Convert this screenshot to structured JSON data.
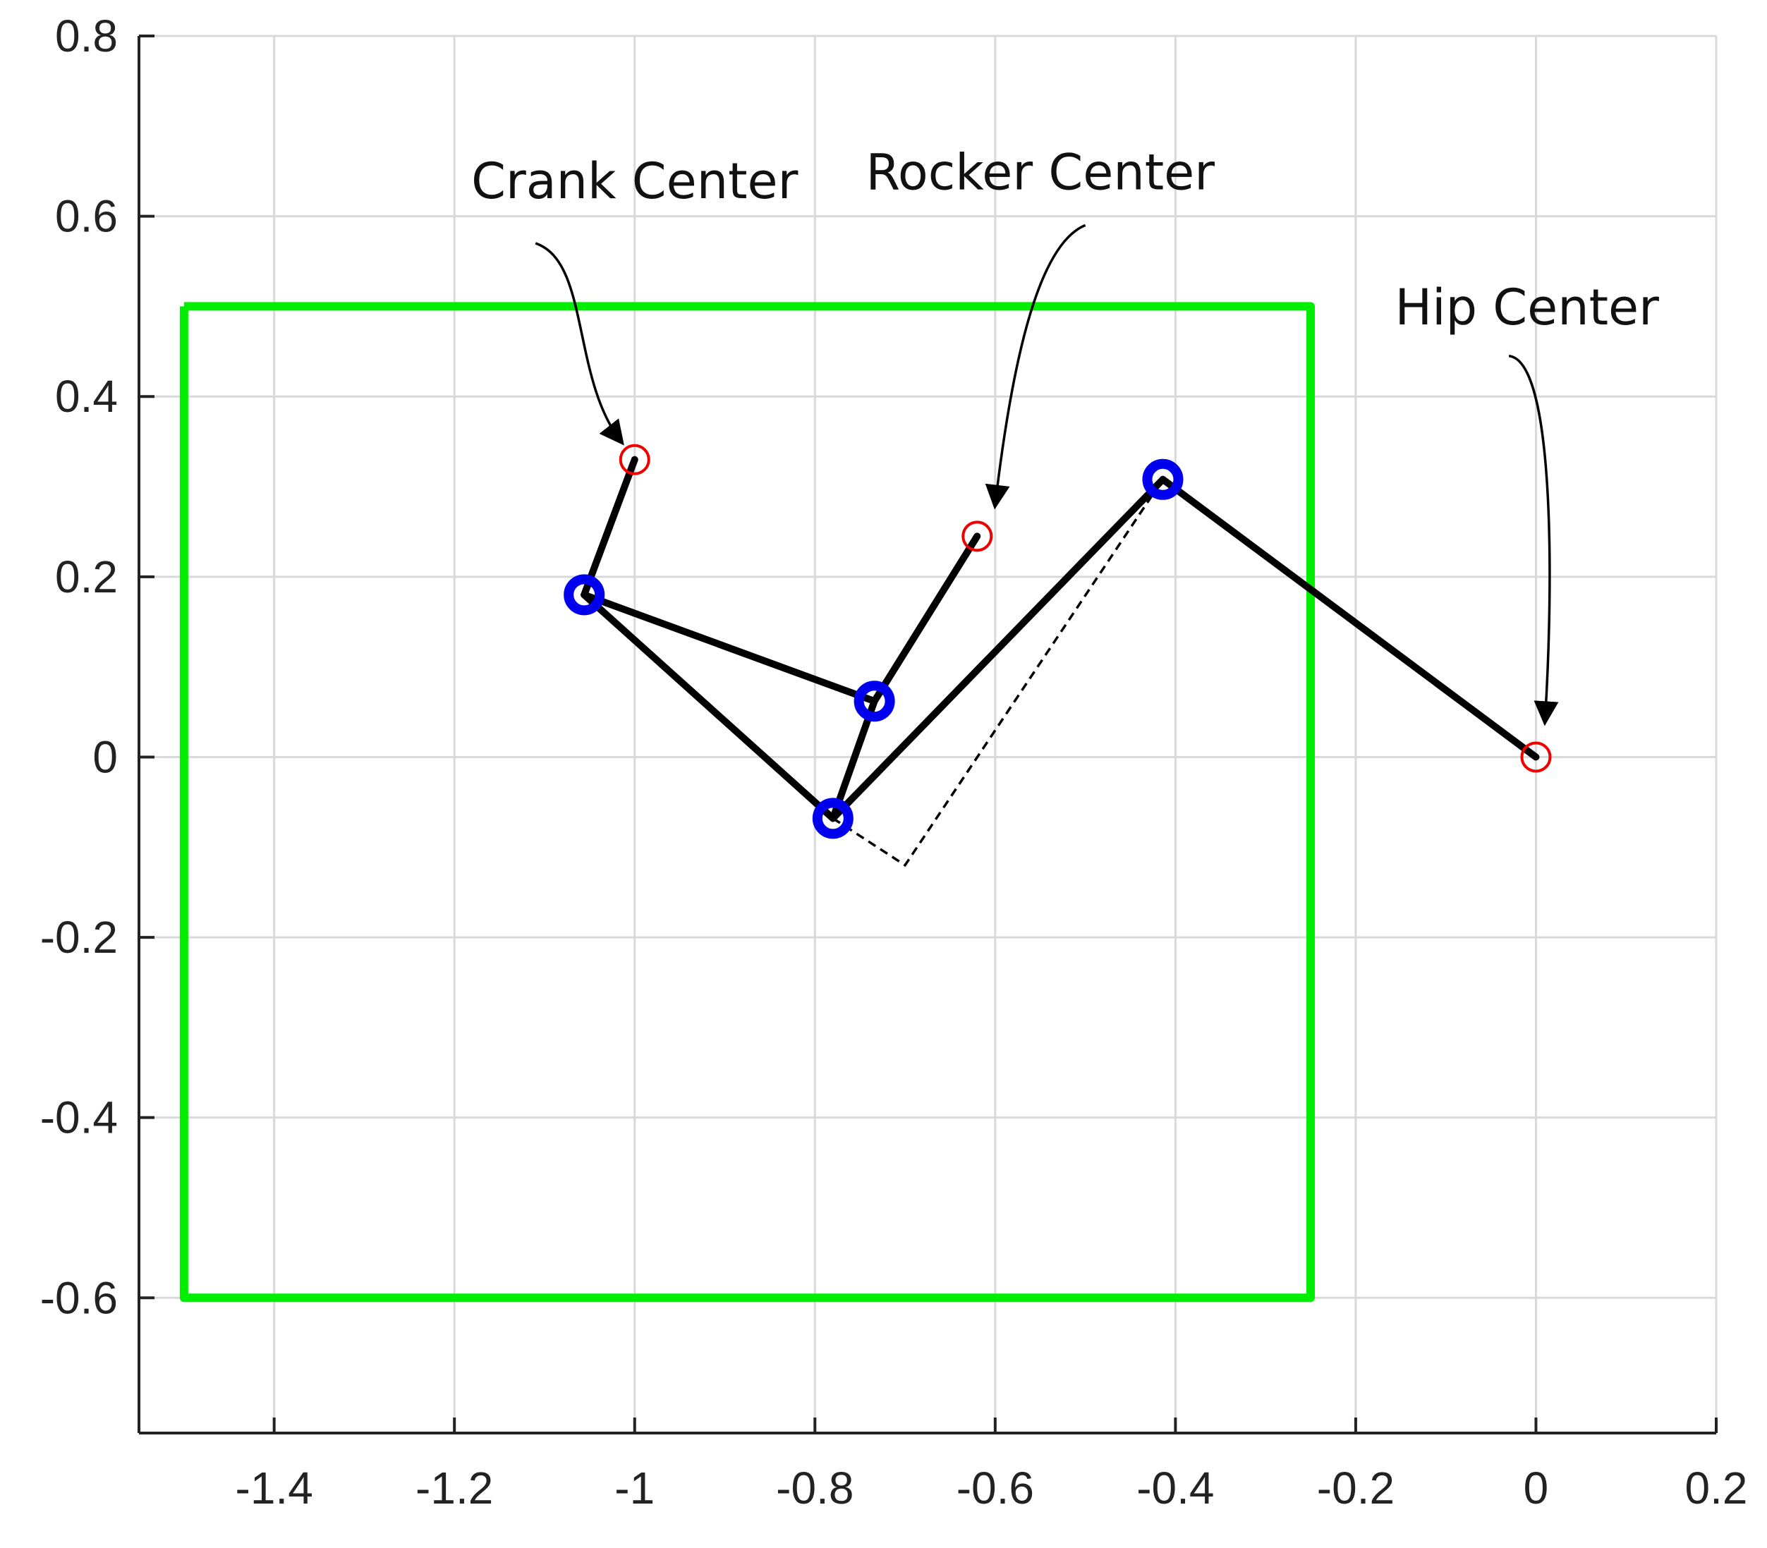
{
  "chart_data": {
    "type": "line",
    "title": "",
    "xlabel": "",
    "ylabel": "",
    "xlim": [
      -1.55,
      0.2
    ],
    "ylim": [
      -0.75,
      0.8
    ],
    "grid": true,
    "x_ticks": [
      -1.4,
      -1.2,
      -1,
      -0.8,
      -0.6,
      -0.4,
      -0.2,
      0,
      0.2
    ],
    "x_tick_labels": [
      "-1.4",
      "-1.2",
      "-1",
      "-0.8",
      "-0.6",
      "-0.4",
      "-0.2",
      "0",
      "0.2"
    ],
    "y_ticks": [
      -0.6,
      -0.4,
      -0.2,
      0,
      0.2,
      0.4,
      0.6,
      0.8
    ],
    "y_tick_labels": [
      "-0.6",
      "-0.4",
      "-0.2",
      "0",
      "0.2",
      "0.4",
      "0.6",
      "0.8"
    ],
    "boundary_box": {
      "color": "#00ee00",
      "points": [
        [
          -1.5,
          0.5
        ],
        [
          -0.25,
          0.5
        ],
        [
          -0.25,
          -0.6
        ],
        [
          -1.5,
          -0.6
        ],
        [
          -1.5,
          0.5
        ]
      ]
    },
    "links": [
      {
        "from": [
          -1.0,
          0.33
        ],
        "to": [
          -1.056,
          0.18
        ]
      },
      {
        "from": [
          -1.056,
          0.18
        ],
        "to": [
          -0.734,
          0.062
        ]
      },
      {
        "from": [
          -1.056,
          0.18
        ],
        "to": [
          -0.78,
          -0.068
        ]
      },
      {
        "from": [
          -0.78,
          -0.068
        ],
        "to": [
          -0.734,
          0.062
        ]
      },
      {
        "from": [
          -0.734,
          0.062
        ],
        "to": [
          -0.62,
          0.245
        ]
      },
      {
        "from": [
          -0.78,
          -0.068
        ],
        "to": [
          -0.414,
          0.308
        ]
      },
      {
        "from": [
          -0.414,
          0.308
        ],
        "to": [
          0.0,
          0.0
        ]
      }
    ],
    "dashed_links": [
      [
        [
          -0.78,
          -0.068
        ],
        [
          -0.7,
          -0.12
        ],
        [
          -0.414,
          0.308
        ]
      ]
    ],
    "joints": {
      "color": "#0000ee",
      "points": [
        [
          -1.056,
          0.18
        ],
        [
          -0.734,
          0.062
        ],
        [
          -0.78,
          -0.068
        ],
        [
          -0.414,
          0.308
        ]
      ]
    },
    "centers": {
      "color": "#ee0000",
      "points": [
        [
          -1.0,
          0.33
        ],
        [
          -0.62,
          0.245
        ],
        [
          0.0,
          0.0
        ]
      ]
    },
    "annotations": [
      {
        "text": "Crank Center",
        "text_at": [
          -1.0,
          0.62
        ],
        "curve_start": [
          -1.11,
          0.57
        ],
        "curve_ctrl": [
          [
            -1.05,
            0.55
          ],
          [
            -1.07,
            0.42
          ]
        ],
        "arrow_tip": [
          -1.015,
          0.35
        ]
      },
      {
        "text": "Rocker Center",
        "text_at": [
          -0.55,
          0.63
        ],
        "curve_start": [
          -0.5,
          0.59
        ],
        "curve_ctrl": [
          [
            -0.55,
            0.57
          ],
          [
            -0.58,
            0.45
          ]
        ],
        "arrow_tip": [
          -0.6,
          0.28
        ]
      },
      {
        "text": "Hip Center",
        "text_at": [
          -0.01,
          0.48
        ],
        "curve_start": [
          -0.03,
          0.445
        ],
        "curve_ctrl": [
          [
            0.02,
            0.44
          ],
          [
            0.02,
            0.2
          ]
        ],
        "arrow_tip": [
          0.01,
          0.04
        ]
      }
    ]
  }
}
